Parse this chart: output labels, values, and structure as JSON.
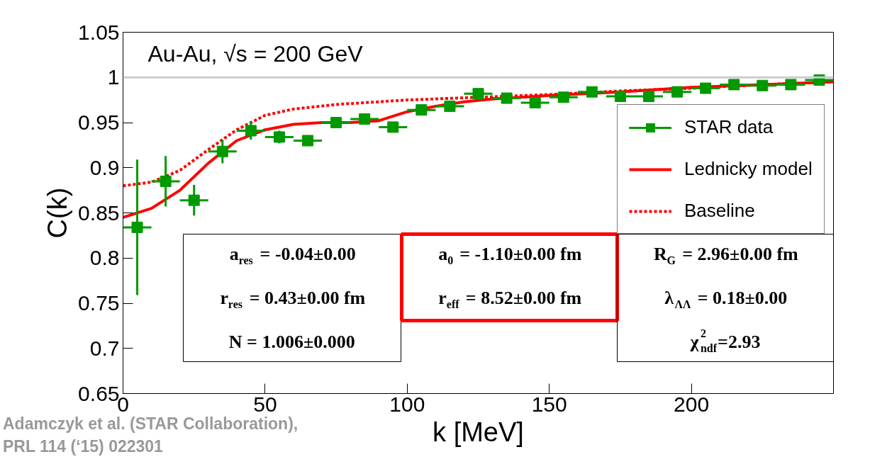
{
  "chart_data": {
    "type": "scatter",
    "title": "Au-Au, √s = 200 GeV",
    "xlabel": "k [MeV]",
    "ylabel": "C(k)",
    "x": [
      5,
      15,
      25,
      35,
      45,
      55,
      65,
      75,
      85,
      95,
      105,
      115,
      125,
      135,
      145,
      155,
      165,
      175,
      185,
      195,
      205,
      215,
      225,
      235,
      245
    ],
    "series": [
      {
        "name": "STAR data",
        "color": "#009900",
        "marker": "square",
        "values": [
          0.834,
          0.885,
          0.864,
          0.918,
          0.941,
          0.934,
          0.93,
          0.95,
          0.954,
          0.945,
          0.964,
          0.968,
          0.982,
          0.977,
          0.972,
          0.978,
          0.984,
          0.979,
          0.979,
          0.984,
          0.988,
          0.992,
          0.991,
          0.992,
          0.997
        ],
        "errors": [
          0.075,
          0.028,
          0.017,
          0.013,
          0.01,
          0.007,
          0.006,
          0.004,
          0.004,
          0.003,
          0.003,
          0.003,
          0.002,
          0.002,
          0.002,
          0.002,
          0.002,
          0.002,
          0.002,
          0.002,
          0.002,
          0.002,
          0.002,
          0.002,
          0.002
        ],
        "xerrors": [
          5,
          5,
          5,
          5,
          5,
          5,
          5,
          5,
          5,
          5,
          5,
          5,
          5,
          5,
          5,
          5,
          5,
          5,
          5,
          5,
          5,
          5,
          5,
          5,
          5
        ]
      },
      {
        "name": "Lednicky model",
        "type": "line",
        "color": "#ff0000",
        "line_style": "solid",
        "marker": "none",
        "x": [
          0,
          10,
          20,
          30,
          40,
          50,
          60,
          70,
          80,
          90,
          100,
          110,
          120,
          130,
          150,
          175,
          200,
          225,
          250
        ],
        "values": [
          0.845,
          0.855,
          0.875,
          0.905,
          0.93,
          0.942,
          0.948,
          0.95,
          0.95,
          0.952,
          0.962,
          0.968,
          0.973,
          0.976,
          0.98,
          0.984,
          0.989,
          0.992,
          0.995
        ]
      },
      {
        "name": "Baseline",
        "type": "line",
        "color": "#ff0000",
        "line_style": "dotted",
        "marker": "none",
        "x": [
          0,
          10,
          20,
          30,
          40,
          50,
          60,
          75,
          100,
          125,
          150,
          175,
          200,
          225,
          250
        ],
        "values": [
          0.88,
          0.884,
          0.897,
          0.92,
          0.942,
          0.958,
          0.965,
          0.97,
          0.975,
          0.978,
          0.981,
          0.985,
          0.988,
          0.992,
          0.995
        ]
      }
    ],
    "xlim": [
      0,
      250
    ],
    "xticks": [
      0,
      50,
      100,
      150,
      200
    ],
    "ylim": [
      0.65,
      1.05
    ],
    "yticks": [
      0.65,
      0.7,
      0.75,
      0.8,
      0.85,
      0.9,
      0.95,
      1,
      1.05
    ],
    "ref_lines": [
      {
        "axis": "y",
        "value": 1,
        "color": "#cccccc",
        "line_style": "solid"
      }
    ],
    "grid": false,
    "legend": "right",
    "annotations": [
      "a$_{res}$ = -0.04±0.00",
      "r$_{res}$ = 0.43±0.00 fm",
      "N = 1.006±0.000",
      "a$_{0}$ = -1.10±0.00 fm",
      "r$_{eff}$ = 8.52±0.00 fm",
      "R$_{G}$ = 2.96±0.00 fm",
      "λ$_{ΛΛ}$ = 0.18±0.00",
      "χ$^{2}$$_{ndf}$=2.93",
      "Adamczyk et al. (STAR Collaboration),\nPRL 114 (‘15) 022301"
    ]
  }
}
